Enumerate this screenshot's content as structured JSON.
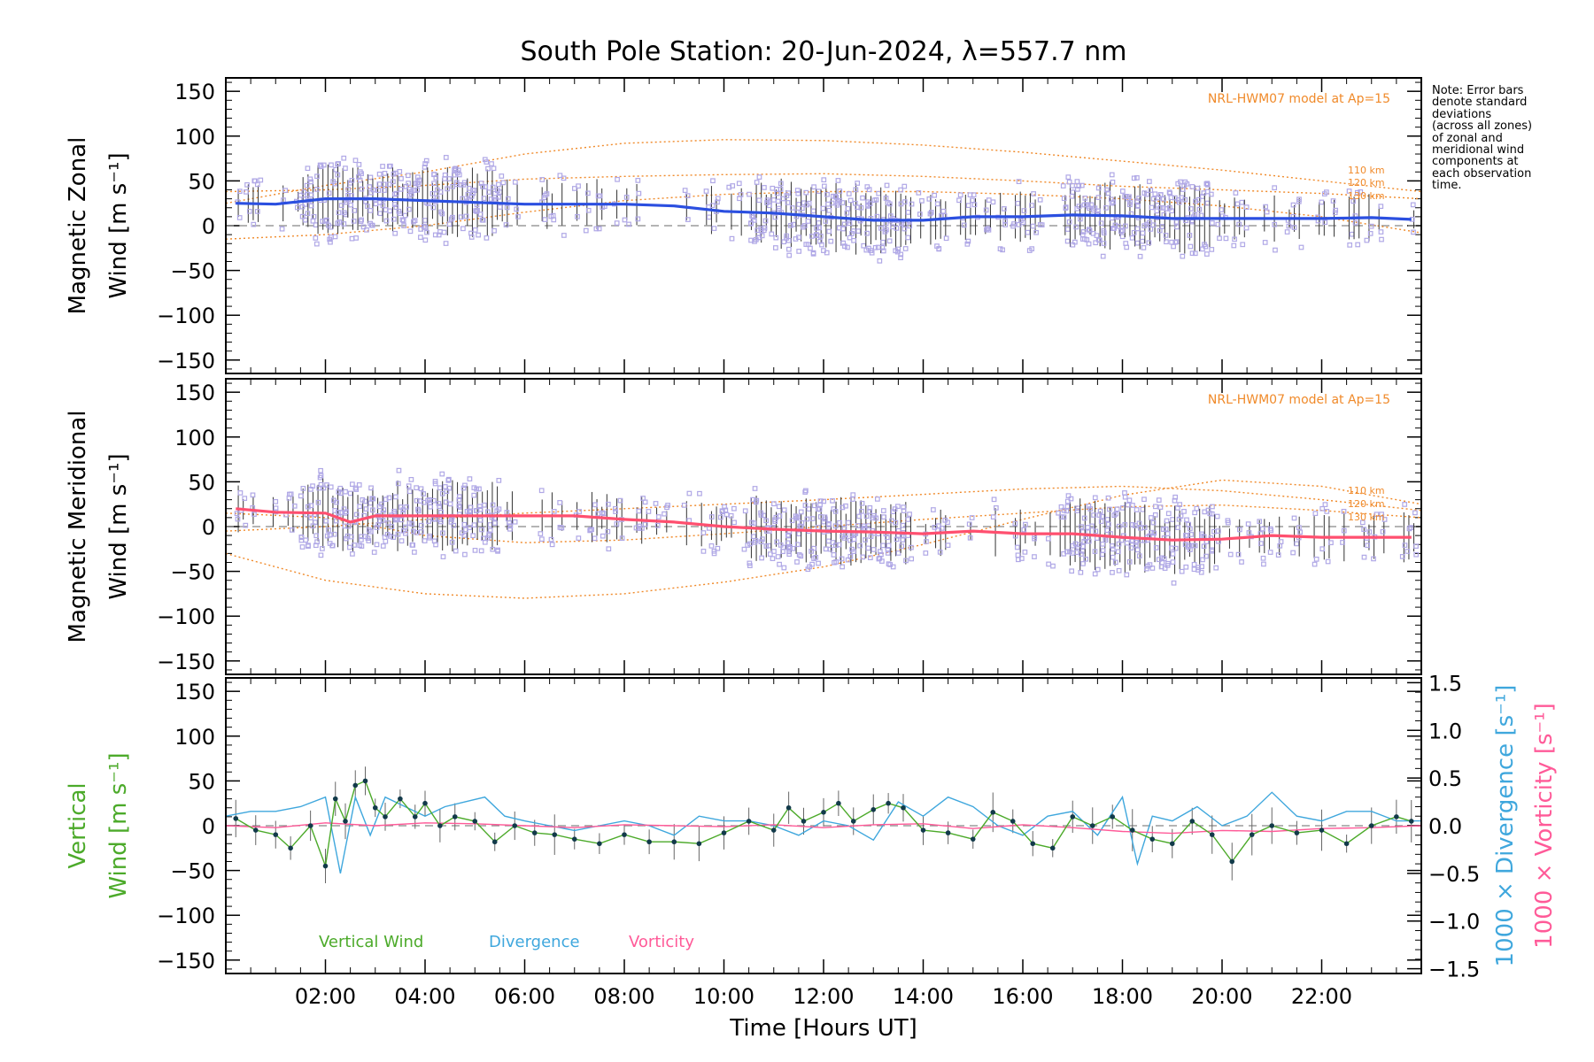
{
  "chart_data": {
    "type": "line",
    "title": "South Pole Station: 20-Jun-2024, λ=557.7 nm",
    "xlabel": "Time [Hours UT]",
    "x_range_hours": [
      0,
      24
    ],
    "x_ticks": [
      "02:00",
      "04:00",
      "06:00",
      "08:00",
      "10:00",
      "12:00",
      "14:00",
      "16:00",
      "18:00",
      "20:00",
      "22:00"
    ],
    "x_tick_values": [
      2,
      4,
      6,
      8,
      10,
      12,
      14,
      16,
      18,
      20,
      22
    ],
    "note": [
      "Note: Error bars",
      "denote standard",
      "deviations",
      "(across all zones)",
      "of zonal and",
      "meridional wind",
      "components at",
      "each observation",
      "time."
    ],
    "colors": {
      "zonal_mean": "#2b4fe0",
      "meridional_mean": "#ff4f6f",
      "model": "#f08a2a",
      "zone_points": "#b0a8e6",
      "vertical": "#4caa2a",
      "divergence": "#3fa7dd",
      "vorticity": "#ff5a98",
      "errbar": "#333333"
    },
    "panels": [
      {
        "name": "zonal",
        "ylabel_line1": "Magnetic Zonal",
        "ylabel_line2": "Wind [m s⁻¹]",
        "ylim": [
          -165,
          165
        ],
        "y_ticks": [
          150,
          100,
          50,
          0,
          -50,
          -100,
          -150
        ],
        "y_tick_labels": [
          "150",
          "100",
          "50",
          "0",
          "−50",
          "−100",
          "−150"
        ],
        "model_label": "NRL-HWM07 model at Ap=15",
        "model_levels": [
          "110 km",
          "120 km",
          "130 km"
        ],
        "series": [
          {
            "name": "Mean zonal wind",
            "x": [
              0.2,
              1,
              2,
              3,
              4,
              5,
              6,
              7,
              8,
              9,
              10,
              11,
              12,
              13,
              14,
              15,
              16,
              17,
              18,
              19,
              20,
              21,
              22,
              23,
              23.8
            ],
            "values": [
              25,
              24,
              30,
              30,
              28,
              26,
              24,
              24,
              24,
              22,
              16,
              14,
              10,
              6,
              6,
              10,
              10,
              12,
              11,
              8,
              8,
              8,
              8,
              9,
              7
            ]
          },
          {
            "name": "HWM07 110 km",
            "x": [
              0,
              2,
              4,
              6,
              8,
              10,
              12,
              14,
              16,
              18,
              20,
              22,
              24
            ],
            "values": [
              25,
              45,
              60,
              80,
              92,
              96,
              95,
              90,
              82,
              72,
              62,
              50,
              38
            ]
          },
          {
            "name": "HWM07 120 km",
            "x": [
              0,
              2,
              4,
              6,
              8,
              10,
              12,
              14,
              16,
              18,
              20,
              22,
              24
            ],
            "values": [
              38,
              40,
              45,
              52,
              55,
              57,
              58,
              55,
              50,
              44,
              40,
              36,
              30
            ]
          },
          {
            "name": "HWM07 130 km",
            "x": [
              0,
              2,
              4,
              6,
              8,
              10,
              12,
              14,
              16,
              18,
              20,
              22,
              24
            ],
            "values": [
              -15,
              -10,
              0,
              15,
              28,
              35,
              38,
              38,
              35,
              30,
              22,
              10,
              -8
            ]
          }
        ]
      },
      {
        "name": "meridional",
        "ylabel_line1": "Magnetic Meridional",
        "ylabel_line2": "Wind [m s⁻¹]",
        "ylim": [
          -165,
          165
        ],
        "y_ticks": [
          150,
          100,
          50,
          0,
          -50,
          -100,
          -150
        ],
        "y_tick_labels": [
          "150",
          "100",
          "50",
          "0",
          "−50",
          "−100",
          "−150"
        ],
        "model_label": "NRL-HWM07 model at Ap=15",
        "model_levels": [
          "110 km",
          "120 km",
          "130 km"
        ],
        "series": [
          {
            "name": "Mean meridional wind",
            "x": [
              0.2,
              1,
              2,
              2.5,
              3,
              4,
              5,
              6,
              7,
              8,
              9,
              10,
              11,
              12,
              13,
              14,
              15,
              16,
              17,
              18,
              19,
              20,
              21,
              22,
              23,
              23.8
            ],
            "values": [
              20,
              16,
              15,
              5,
              12,
              12,
              12,
              12,
              12,
              8,
              5,
              0,
              -3,
              -5,
              -6,
              -8,
              -5,
              -8,
              -8,
              -12,
              -15,
              -14,
              -10,
              -12,
              -12,
              -12
            ]
          },
          {
            "name": "HWM07 110 km",
            "x": [
              0,
              2,
              4,
              6,
              8,
              10,
              12,
              14,
              16,
              18,
              20,
              22,
              24
            ],
            "values": [
              -30,
              -60,
              -75,
              -80,
              -75,
              -62,
              -45,
              -20,
              8,
              35,
              52,
              45,
              25
            ]
          },
          {
            "name": "HWM07 120 km",
            "x": [
              0,
              2,
              4,
              6,
              8,
              10,
              12,
              14,
              16,
              18,
              20,
              22,
              24
            ],
            "values": [
              -5,
              0,
              8,
              15,
              20,
              25,
              30,
              36,
              42,
              45,
              40,
              30,
              18
            ]
          },
          {
            "name": "HWM07 130 km",
            "x": [
              0,
              2,
              4,
              6,
              8,
              10,
              12,
              14,
              16,
              18,
              20,
              22,
              24
            ],
            "values": [
              15,
              10,
              -10,
              -18,
              -15,
              -8,
              0,
              8,
              15,
              22,
              24,
              18,
              10
            ]
          }
        ]
      },
      {
        "name": "vertical",
        "ylabel_line1": "Vertical",
        "ylabel_line2": "Wind [m s⁻¹]",
        "ylim": [
          -165,
          165
        ],
        "y_ticks": [
          150,
          100,
          50,
          0,
          -50,
          -100,
          -150
        ],
        "y_tick_labels": [
          "150",
          "100",
          "50",
          "0",
          "−50",
          "−100",
          "−150"
        ],
        "right_axis_label_1": "1000 × Divergence [s⁻¹]",
        "right_axis_label_2": "1000 × Vorticity [s⁻¹]",
        "right_ylim": [
          -1.55,
          1.55
        ],
        "right_ticks": [
          1.5,
          1.0,
          0.5,
          0.0,
          -0.5,
          -1.0,
          -1.5
        ],
        "right_tick_labels": [
          "1.5",
          "1.0",
          "0.5",
          "0.0",
          "−0.5",
          "−1.0",
          "−1.5"
        ],
        "legend": [
          "Vertical Wind",
          "Divergence",
          "Vorticity"
        ],
        "series": [
          {
            "name": "Vertical Wind",
            "x": [
              0.2,
              0.6,
              1.0,
              1.3,
              1.7,
              2.0,
              2.2,
              2.4,
              2.6,
              2.8,
              3.0,
              3.2,
              3.5,
              3.8,
              4.0,
              4.3,
              4.6,
              5.0,
              5.4,
              5.8,
              6.2,
              6.6,
              7.0,
              7.5,
              8.0,
              8.5,
              9.0,
              9.5,
              10.0,
              10.5,
              11.0,
              11.3,
              11.6,
              12.0,
              12.3,
              12.6,
              13.0,
              13.3,
              13.6,
              14.0,
              14.5,
              15.0,
              15.4,
              15.8,
              16.2,
              16.6,
              17.0,
              17.4,
              17.8,
              18.2,
              18.6,
              19.0,
              19.4,
              19.8,
              20.2,
              20.6,
              21.0,
              21.5,
              22.0,
              22.5,
              23.0,
              23.5,
              23.8
            ],
            "values": [
              8,
              -5,
              -10,
              -25,
              0,
              -45,
              30,
              5,
              45,
              50,
              20,
              10,
              30,
              10,
              25,
              0,
              10,
              5,
              -18,
              0,
              -8,
              -10,
              -15,
              -20,
              -10,
              -18,
              -18,
              -20,
              -8,
              5,
              -5,
              20,
              5,
              15,
              25,
              5,
              18,
              25,
              20,
              -5,
              -8,
              -15,
              15,
              5,
              -20,
              -25,
              10,
              0,
              10,
              -5,
              -15,
              -20,
              5,
              -10,
              -40,
              -10,
              0,
              -8,
              -5,
              -20,
              0,
              10,
              5
            ]
          },
          {
            "name": "Divergence",
            "x": [
              0,
              0.5,
              1.0,
              1.5,
              2.0,
              2.3,
              2.6,
              2.9,
              3.2,
              3.6,
              4.0,
              4.4,
              4.8,
              5.2,
              5.6,
              6.0,
              6.5,
              7.0,
              7.5,
              8.0,
              8.5,
              9.0,
              9.5,
              10.0,
              10.5,
              11.0,
              11.5,
              12.0,
              12.5,
              13.0,
              13.5,
              14.0,
              14.5,
              15.0,
              15.5,
              16.0,
              16.5,
              17.0,
              17.5,
              18.0,
              18.3,
              18.6,
              19.0,
              19.5,
              20.0,
              20.5,
              21.0,
              21.5,
              22.0,
              22.5,
              23.0,
              23.5,
              24.0
            ],
            "values": [
              0.1,
              0.15,
              0.15,
              0.2,
              0.3,
              -0.5,
              0.3,
              -0.1,
              0.3,
              0.2,
              0.1,
              0.2,
              0.25,
              0.3,
              0.1,
              0.05,
              0.0,
              -0.05,
              0.0,
              0.05,
              0.0,
              -0.1,
              0.1,
              0.05,
              0.05,
              0.0,
              -0.1,
              0.05,
              0.0,
              -0.15,
              0.25,
              0.1,
              0.3,
              0.2,
              0.0,
              -0.1,
              0.1,
              0.15,
              -0.1,
              0.3,
              -0.4,
              0.1,
              0.05,
              0.2,
              0.0,
              0.1,
              0.35,
              0.1,
              0.05,
              0.15,
              0.15,
              0.05,
              0.05
            ]
          },
          {
            "name": "Vorticity",
            "x": [
              0,
              1,
              2,
              3,
              4,
              5,
              6,
              7,
              8,
              9,
              10,
              11,
              12,
              13,
              14,
              15,
              16,
              17,
              18,
              19,
              20,
              21,
              22,
              23,
              24
            ],
            "values": [
              0.0,
              -0.02,
              0.03,
              0.0,
              0.03,
              0.02,
              0.0,
              -0.02,
              0.01,
              0.0,
              -0.01,
              0.01,
              -0.02,
              0.01,
              0.02,
              -0.03,
              0.01,
              -0.02,
              -0.06,
              -0.08,
              -0.05,
              -0.06,
              -0.03,
              -0.02,
              0.0
            ]
          }
        ]
      }
    ]
  }
}
